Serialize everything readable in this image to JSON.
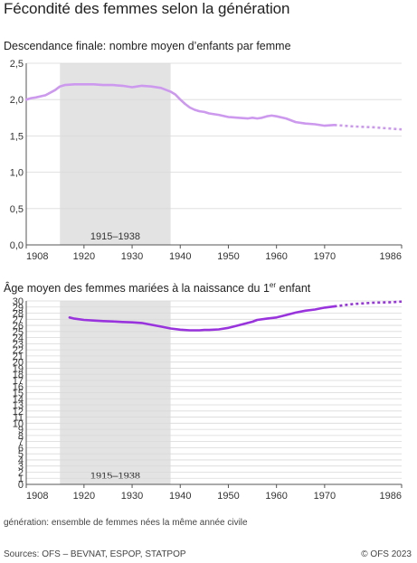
{
  "title": "Fécondité des femmes selon la génération",
  "note": "génération: ensemble de femmes nées la même année civile",
  "source": "Sources: OFS – BEVNAT, ESPOP, STATPOP",
  "copyright": "© OFS 2023",
  "colors": {
    "light_series": "#cc99ee",
    "dark_series": "#9933dd",
    "band": "#e3e3e3",
    "axis": "#555555"
  },
  "chart_data": [
    {
      "type": "line",
      "title": "Descendance finale: nombre moyen d’enfants par femme",
      "xlim": [
        1908,
        1986
      ],
      "ylim": [
        0,
        2.5
      ],
      "x_ticks": [
        1908,
        1920,
        1930,
        1940,
        1950,
        1960,
        1970,
        1986
      ],
      "y_ticks": [
        0,
        0.5,
        1.0,
        1.5,
        2.0,
        2.5
      ],
      "y_tick_labels": [
        "0,0",
        "0,5",
        "1,0",
        "1,5",
        "2,0",
        "2,5"
      ],
      "shaded_band": {
        "from": 1915,
        "to": 1938,
        "label": "1915–1938"
      },
      "grid": true,
      "series": [
        {
          "solid": [
            [
              1908,
              2.0
            ],
            [
              1909,
              2.02
            ],
            [
              1910,
              2.03
            ],
            [
              1912,
              2.06
            ],
            [
              1914,
              2.13
            ],
            [
              1915,
              2.18
            ],
            [
              1916,
              2.2
            ],
            [
              1918,
              2.21
            ],
            [
              1920,
              2.21
            ],
            [
              1922,
              2.21
            ],
            [
              1924,
              2.2
            ],
            [
              1926,
              2.2
            ],
            [
              1928,
              2.19
            ],
            [
              1930,
              2.17
            ],
            [
              1931,
              2.18
            ],
            [
              1932,
              2.19
            ],
            [
              1934,
              2.18
            ],
            [
              1936,
              2.16
            ],
            [
              1938,
              2.11
            ],
            [
              1939,
              2.07
            ],
            [
              1940,
              2.0
            ],
            [
              1941,
              1.94
            ],
            [
              1942,
              1.89
            ],
            [
              1943,
              1.86
            ],
            [
              1944,
              1.84
            ],
            [
              1945,
              1.83
            ],
            [
              1946,
              1.81
            ],
            [
              1948,
              1.79
            ],
            [
              1950,
              1.76
            ],
            [
              1952,
              1.75
            ],
            [
              1954,
              1.74
            ],
            [
              1955,
              1.75
            ],
            [
              1956,
              1.74
            ],
            [
              1957,
              1.75
            ],
            [
              1958,
              1.77
            ],
            [
              1959,
              1.78
            ],
            [
              1960,
              1.77
            ],
            [
              1962,
              1.74
            ],
            [
              1964,
              1.69
            ],
            [
              1966,
              1.67
            ],
            [
              1968,
              1.66
            ],
            [
              1970,
              1.64
            ],
            [
              1972,
              1.65
            ]
          ],
          "projected": [
            [
              1972,
              1.65
            ],
            [
              1976,
              1.63
            ],
            [
              1980,
              1.62
            ],
            [
              1984,
              1.6
            ],
            [
              1986,
              1.59
            ]
          ]
        }
      ]
    },
    {
      "type": "line",
      "title": "Âge moyen des femmes mariées à la naissance du 1",
      "title_superscript": "er",
      "title_end": " enfant",
      "xlim": [
        1908,
        1986
      ],
      "ylim": [
        0,
        30
      ],
      "x_ticks": [
        1908,
        1920,
        1930,
        1940,
        1950,
        1960,
        1970,
        1986
      ],
      "y_ticks": [
        0,
        1,
        2,
        3,
        4,
        5,
        6,
        7,
        8,
        9,
        10,
        11,
        12,
        13,
        14,
        15,
        16,
        17,
        18,
        19,
        20,
        21,
        22,
        23,
        24,
        25,
        26,
        27,
        28,
        29,
        30
      ],
      "y_tick_labels": [
        "0",
        "1",
        "2",
        "3",
        "4",
        "5",
        "6",
        "7",
        "8",
        "9",
        "10",
        "11",
        "12",
        "13",
        "14",
        "15",
        "16",
        "17",
        "18",
        "19",
        "20",
        "21",
        "22",
        "23",
        "24",
        "25",
        "26",
        "27",
        "28",
        "29",
        "30"
      ],
      "shaded_band": {
        "from": 1915,
        "to": 1938,
        "label": "1915–1938"
      },
      "grid": true,
      "series": [
        {
          "solid": [
            [
              1917,
              27.3
            ],
            [
              1918,
              27.1
            ],
            [
              1920,
              26.9
            ],
            [
              1922,
              26.8
            ],
            [
              1924,
              26.7
            ],
            [
              1926,
              26.65
            ],
            [
              1928,
              26.55
            ],
            [
              1930,
              26.5
            ],
            [
              1932,
              26.4
            ],
            [
              1934,
              26.1
            ],
            [
              1936,
              25.8
            ],
            [
              1938,
              25.5
            ],
            [
              1940,
              25.3
            ],
            [
              1942,
              25.2
            ],
            [
              1944,
              25.2
            ],
            [
              1945,
              25.25
            ],
            [
              1946,
              25.25
            ],
            [
              1948,
              25.35
            ],
            [
              1950,
              25.6
            ],
            [
              1952,
              26.0
            ],
            [
              1954,
              26.4
            ],
            [
              1955,
              26.6
            ],
            [
              1956,
              26.9
            ],
            [
              1958,
              27.1
            ],
            [
              1960,
              27.3
            ],
            [
              1962,
              27.7
            ],
            [
              1964,
              28.1
            ],
            [
              1966,
              28.4
            ],
            [
              1968,
              28.6
            ],
            [
              1970,
              28.9
            ],
            [
              1972,
              29.1
            ]
          ],
          "projected": [
            [
              1972,
              29.1
            ],
            [
              1976,
              29.5
            ],
            [
              1980,
              29.7
            ],
            [
              1984,
              29.8
            ],
            [
              1986,
              29.9
            ]
          ]
        }
      ]
    }
  ]
}
